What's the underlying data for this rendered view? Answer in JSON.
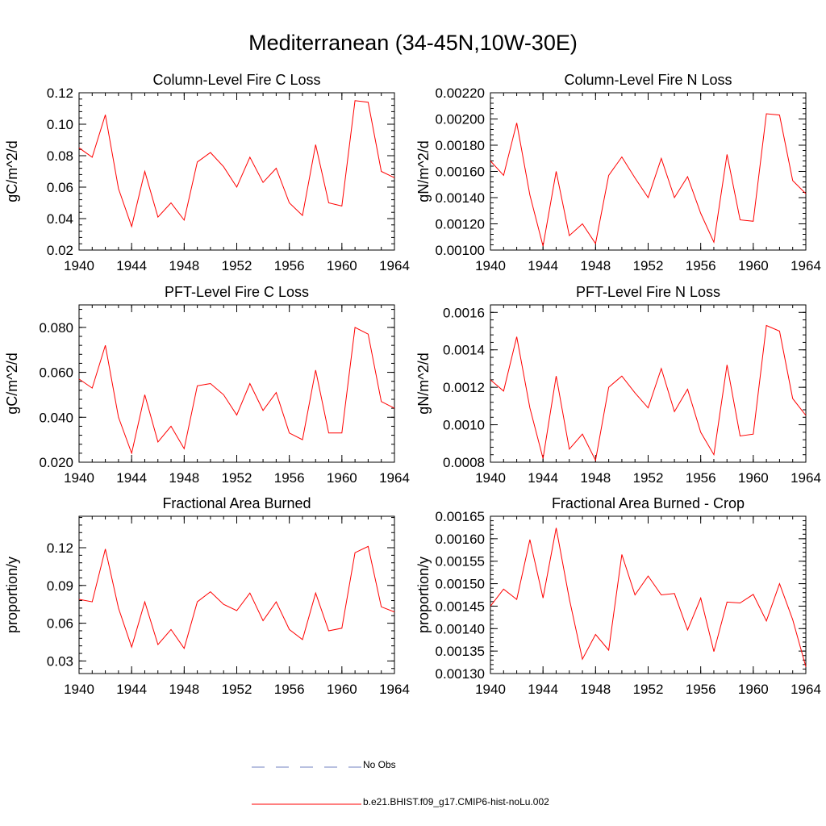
{
  "figure_title": "Mediterranean (34-45N,10W-30E)",
  "chart_data": [
    {
      "type": "line",
      "title": "Column-Level Fire C Loss",
      "ylabel": "gC/m^2/d",
      "xlim": [
        1940,
        1964
      ],
      "ylim": [
        0.02,
        0.12
      ],
      "x_ticks": [
        1940,
        1944,
        1948,
        1952,
        1956,
        1960,
        1964
      ],
      "x_tick_labels": [
        "1940",
        "1944",
        "1948",
        "1952",
        "1956",
        "1960",
        "1964"
      ],
      "y_ticks": [
        0.02,
        0.04,
        0.06,
        0.08,
        0.1,
        0.12
      ],
      "y_tick_labels": [
        "0.02",
        "0.04",
        "0.06",
        "0.08",
        "0.10",
        "0.12"
      ],
      "series": [
        {
          "name": "b.e21.BHIST.f09_g17.CMIP6-hist-noLu.002",
          "color": "#ff0000",
          "x": [
            1940,
            1941,
            1942,
            1943,
            1944,
            1945,
            1946,
            1947,
            1948,
            1949,
            1950,
            1951,
            1952,
            1953,
            1954,
            1955,
            1956,
            1957,
            1958,
            1959,
            1960,
            1961,
            1962,
            1963,
            1964
          ],
          "values": [
            0.085,
            0.079,
            0.106,
            0.059,
            0.035,
            0.07,
            0.041,
            0.05,
            0.039,
            0.076,
            0.082,
            0.073,
            0.06,
            0.079,
            0.063,
            0.072,
            0.05,
            0.042,
            0.087,
            0.05,
            0.048,
            0.115,
            0.114,
            0.07,
            0.066
          ]
        }
      ]
    },
    {
      "type": "line",
      "title": "Column-Level Fire N Loss",
      "ylabel": "gN/m^2/d",
      "xlim": [
        1940,
        1964
      ],
      "ylim": [
        0.001,
        0.0022
      ],
      "x_ticks": [
        1940,
        1944,
        1948,
        1952,
        1956,
        1960,
        1964
      ],
      "x_tick_labels": [
        "1940",
        "1944",
        "1948",
        "1952",
        "1956",
        "1960",
        "1964"
      ],
      "y_ticks": [
        0.001,
        0.0012,
        0.0014,
        0.0016,
        0.0018,
        0.002,
        0.0022
      ],
      "y_tick_labels": [
        "0.00100",
        "0.00120",
        "0.00140",
        "0.00160",
        "0.00180",
        "0.00200",
        "0.00220"
      ],
      "series": [
        {
          "name": "b.e21.BHIST.f09_g17.CMIP6-hist-noLu.002",
          "color": "#ff0000",
          "x": [
            1940,
            1941,
            1942,
            1943,
            1944,
            1945,
            1946,
            1947,
            1948,
            1949,
            1950,
            1951,
            1952,
            1953,
            1954,
            1955,
            1956,
            1957,
            1958,
            1959,
            1960,
            1961,
            1962,
            1963,
            1964
          ],
          "values": [
            0.00168,
            0.00157,
            0.00197,
            0.00142,
            0.00103,
            0.0016,
            0.00111,
            0.0012,
            0.00105,
            0.00157,
            0.00171,
            0.00155,
            0.0014,
            0.0017,
            0.0014,
            0.00156,
            0.00128,
            0.00106,
            0.00173,
            0.00123,
            0.00122,
            0.00204,
            0.00203,
            0.00153,
            0.00143
          ]
        }
      ]
    },
    {
      "type": "line",
      "title": "PFT-Level Fire C Loss",
      "ylabel": "gC/m^2/d",
      "xlim": [
        1940,
        1964
      ],
      "ylim": [
        0.02,
        0.09
      ],
      "x_ticks": [
        1940,
        1944,
        1948,
        1952,
        1956,
        1960,
        1964
      ],
      "x_tick_labels": [
        "1940",
        "1944",
        "1948",
        "1952",
        "1956",
        "1960",
        "1964"
      ],
      "y_ticks": [
        0.02,
        0.04,
        0.06,
        0.08
      ],
      "y_tick_labels": [
        "0.020",
        "0.040",
        "0.060",
        "0.080"
      ],
      "series": [
        {
          "name": "b.e21.BHIST.f09_g17.CMIP6-hist-noLu.002",
          "color": "#ff0000",
          "x": [
            1940,
            1941,
            1942,
            1943,
            1944,
            1945,
            1946,
            1947,
            1948,
            1949,
            1950,
            1951,
            1952,
            1953,
            1954,
            1955,
            1956,
            1957,
            1958,
            1959,
            1960,
            1961,
            1962,
            1963,
            1964
          ],
          "values": [
            0.057,
            0.053,
            0.072,
            0.04,
            0.024,
            0.05,
            0.029,
            0.036,
            0.026,
            0.054,
            0.055,
            0.05,
            0.041,
            0.055,
            0.043,
            0.051,
            0.033,
            0.03,
            0.061,
            0.033,
            0.033,
            0.08,
            0.077,
            0.047,
            0.044
          ]
        }
      ]
    },
    {
      "type": "line",
      "title": "PFT-Level Fire N Loss",
      "ylabel": "gN/m^2/d",
      "xlim": [
        1940,
        1964
      ],
      "ylim": [
        0.0008,
        0.00164
      ],
      "x_ticks": [
        1940,
        1944,
        1948,
        1952,
        1956,
        1960,
        1964
      ],
      "x_tick_labels": [
        "1940",
        "1944",
        "1948",
        "1952",
        "1956",
        "1960",
        "1964"
      ],
      "y_ticks": [
        0.0008,
        0.001,
        0.0012,
        0.0014,
        0.0016
      ],
      "y_tick_labels": [
        "0.0008",
        "0.0010",
        "0.0012",
        "0.0014",
        "0.0016"
      ],
      "series": [
        {
          "name": "b.e21.BHIST.f09_g17.CMIP6-hist-noLu.002",
          "color": "#ff0000",
          "x": [
            1940,
            1941,
            1942,
            1943,
            1944,
            1945,
            1946,
            1947,
            1948,
            1949,
            1950,
            1951,
            1952,
            1953,
            1954,
            1955,
            1956,
            1957,
            1958,
            1959,
            1960,
            1961,
            1962,
            1963,
            1964
          ],
          "values": [
            0.00124,
            0.00118,
            0.00147,
            0.00109,
            0.00082,
            0.00126,
            0.00087,
            0.00095,
            0.00081,
            0.0012,
            0.00126,
            0.00117,
            0.00109,
            0.0013,
            0.00107,
            0.00119,
            0.00096,
            0.00084,
            0.00132,
            0.00094,
            0.00095,
            0.00153,
            0.0015,
            0.00114,
            0.00105
          ]
        }
      ]
    },
    {
      "type": "line",
      "title": "Fractional Area Burned",
      "ylabel": "proportion/y",
      "xlim": [
        1940,
        1964
      ],
      "ylim": [
        0.02,
        0.145
      ],
      "x_ticks": [
        1940,
        1944,
        1948,
        1952,
        1956,
        1960,
        1964
      ],
      "x_tick_labels": [
        "1940",
        "1944",
        "1948",
        "1952",
        "1956",
        "1960",
        "1964"
      ],
      "y_ticks": [
        0.03,
        0.06,
        0.09,
        0.12
      ],
      "y_tick_labels": [
        "0.03",
        "0.06",
        "0.09",
        "0.12"
      ],
      "series": [
        {
          "name": "b.e21.BHIST.f09_g17.CMIP6-hist-noLu.002",
          "color": "#ff0000",
          "x": [
            1940,
            1941,
            1942,
            1943,
            1944,
            1945,
            1946,
            1947,
            1948,
            1949,
            1950,
            1951,
            1952,
            1953,
            1954,
            1955,
            1956,
            1957,
            1958,
            1959,
            1960,
            1961,
            1962,
            1963,
            1964
          ],
          "values": [
            0.079,
            0.077,
            0.119,
            0.072,
            0.041,
            0.077,
            0.043,
            0.055,
            0.04,
            0.077,
            0.085,
            0.075,
            0.07,
            0.084,
            0.062,
            0.077,
            0.055,
            0.047,
            0.084,
            0.054,
            0.056,
            0.116,
            0.121,
            0.073,
            0.069
          ]
        }
      ]
    },
    {
      "type": "line",
      "title": "Fractional Area Burned - Crop",
      "ylabel": "proportion/y",
      "xlim": [
        1940,
        1964
      ],
      "ylim": [
        0.0013,
        0.00165
      ],
      "x_ticks": [
        1940,
        1944,
        1948,
        1952,
        1956,
        1960,
        1964
      ],
      "x_tick_labels": [
        "1940",
        "1944",
        "1948",
        "1952",
        "1956",
        "1960",
        "1964"
      ],
      "y_ticks": [
        0.0013,
        0.00135,
        0.0014,
        0.00145,
        0.0015,
        0.00155,
        0.0016,
        0.00165
      ],
      "y_tick_labels": [
        "0.00130",
        "0.00135",
        "0.00140",
        "0.00145",
        "0.00150",
        "0.00155",
        "0.00160",
        "0.00165"
      ],
      "series": [
        {
          "name": "b.e21.BHIST.f09_g17.CMIP6-hist-noLu.002",
          "color": "#ff0000",
          "x": [
            1940,
            1941,
            1942,
            1943,
            1944,
            1945,
            1946,
            1947,
            1948,
            1949,
            1950,
            1951,
            1952,
            1953,
            1954,
            1955,
            1956,
            1957,
            1958,
            1959,
            1960,
            1961,
            1962,
            1963,
            1964
          ],
          "values": [
            0.00145,
            0.001488,
            0.001465,
            0.001598,
            0.001468,
            0.001624,
            0.001466,
            0.001332,
            0.001387,
            0.001352,
            0.001565,
            0.001475,
            0.001517,
            0.001475,
            0.001478,
            0.001397,
            0.001468,
            0.001349,
            0.001459,
            0.001457,
            0.001476,
            0.001417,
            0.0015,
            0.00142,
            0.001315
          ]
        }
      ]
    }
  ],
  "legend": {
    "items": [
      {
        "label": "No Obs",
        "style": "dashed",
        "color": "#7080c0"
      },
      {
        "label": "b.e21.BHIST.f09_g17.CMIP6-hist-noLu.002",
        "style": "solid",
        "color": "#ff0000"
      }
    ]
  }
}
